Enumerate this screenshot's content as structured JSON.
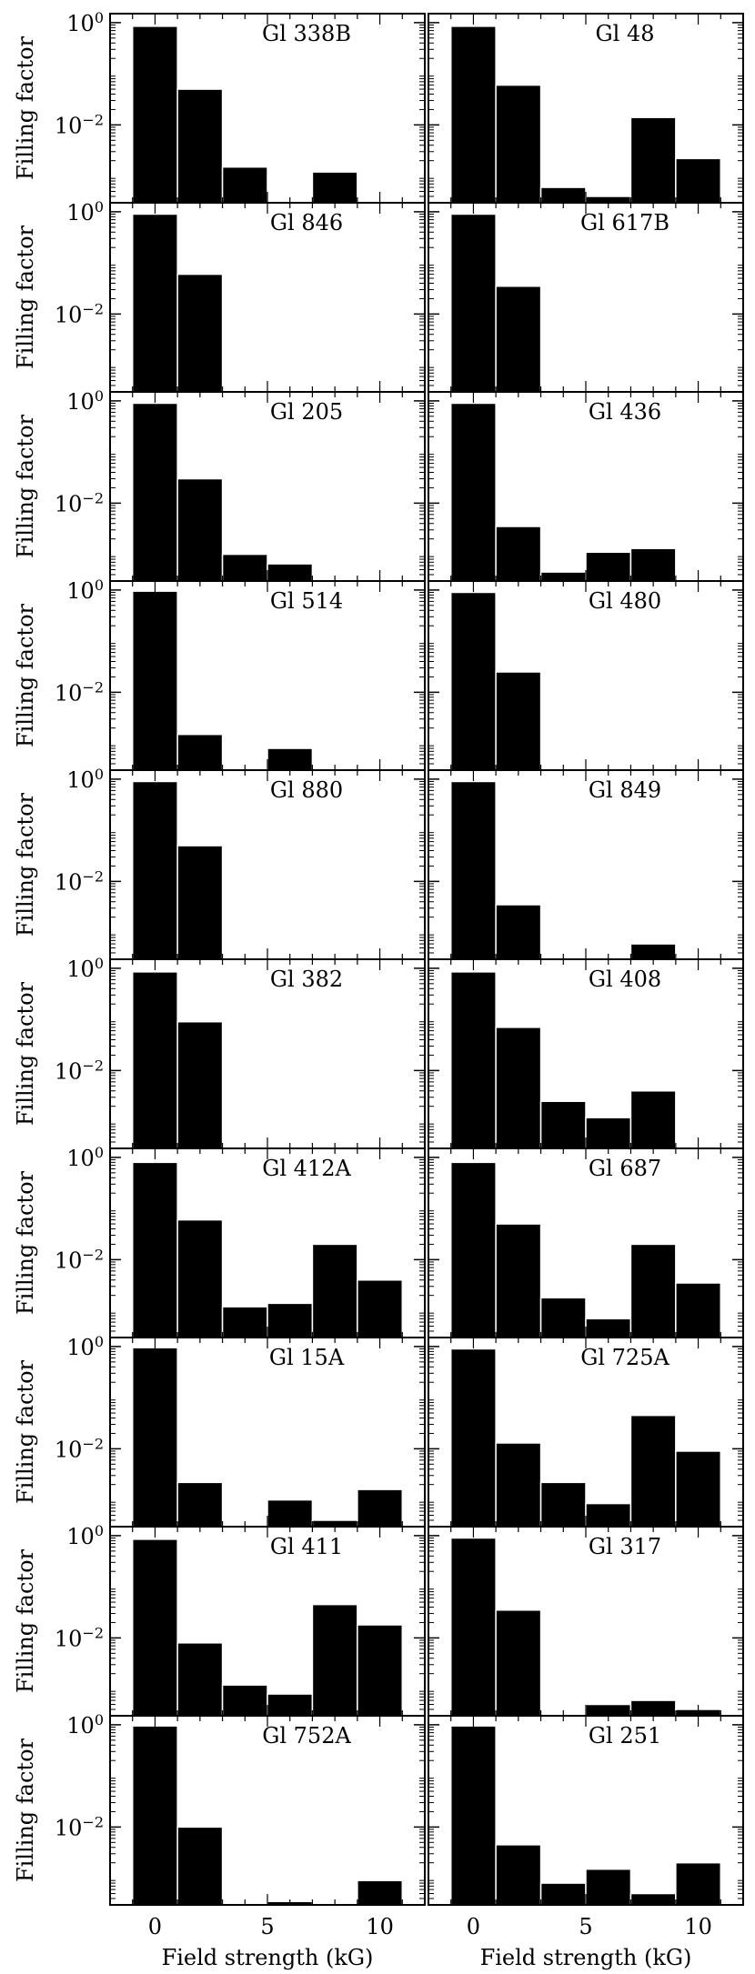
{
  "figure": {
    "ylabel": "Filling factor",
    "xlabel": "Field strength (kG)",
    "ytick_labels": [
      {
        "base": "10",
        "exp": "0",
        "value": 1
      },
      {
        "base": "10",
        "exp": "−2",
        "value": 0.01
      }
    ],
    "xtick_labels": [
      "0",
      "5",
      "10"
    ],
    "colors": {
      "bar": "#000000",
      "bar_edge": "#ffffff",
      "frame": "#000000",
      "background": "#ffffff"
    }
  },
  "chart_data": [
    {
      "type": "bar",
      "title": "Gl 338B",
      "xlabel": "",
      "ylabel": "Filling factor",
      "y_scale": "log",
      "ylim": [
        0.0003,
        1.5
      ],
      "xlim": [
        -2,
        12
      ],
      "x": [
        0,
        2,
        4,
        6,
        8,
        10
      ],
      "values": [
        0.85,
        0.05,
        0.0015,
        0,
        0.0012,
        0
      ]
    },
    {
      "type": "bar",
      "title": "Gl 48",
      "xlabel": "",
      "ylabel": "",
      "y_scale": "log",
      "ylim": [
        0.0003,
        1.5
      ],
      "xlim": [
        -2,
        12
      ],
      "x": [
        0,
        2,
        4,
        6,
        8,
        10
      ],
      "values": [
        0.85,
        0.06,
        0.0006,
        0.0004,
        0.014,
        0.0022
      ]
    },
    {
      "type": "bar",
      "title": "Gl 846",
      "xlabel": "",
      "ylabel": "Filling factor",
      "y_scale": "log",
      "ylim": [
        0.0003,
        1.5
      ],
      "xlim": [
        -2,
        12
      ],
      "x": [
        0,
        2,
        4,
        6,
        8,
        10
      ],
      "values": [
        0.9,
        0.06,
        0,
        0,
        0,
        0
      ]
    },
    {
      "type": "bar",
      "title": "Gl 617B",
      "xlabel": "",
      "ylabel": "",
      "y_scale": "log",
      "ylim": [
        0.0003,
        1.5
      ],
      "xlim": [
        -2,
        12
      ],
      "x": [
        0,
        2,
        4,
        6,
        8,
        10
      ],
      "values": [
        0.9,
        0.035,
        0,
        0,
        0,
        0
      ]
    },
    {
      "type": "bar",
      "title": "Gl 205",
      "xlabel": "",
      "ylabel": "Filling factor",
      "y_scale": "log",
      "ylim": [
        0.0003,
        1.5
      ],
      "xlim": [
        -2,
        12
      ],
      "x": [
        0,
        2,
        4,
        6,
        8,
        10
      ],
      "values": [
        0.9,
        0.03,
        0.001,
        0.00065,
        0,
        0
      ]
    },
    {
      "type": "bar",
      "title": "Gl 436",
      "xlabel": "",
      "ylabel": "",
      "y_scale": "log",
      "ylim": [
        0.0003,
        1.5
      ],
      "xlim": [
        -2,
        12
      ],
      "x": [
        0,
        2,
        4,
        6,
        8,
        10
      ],
      "values": [
        0.9,
        0.0035,
        0.00045,
        0.0011,
        0.0013,
        0
      ]
    },
    {
      "type": "bar",
      "title": "Gl 514",
      "xlabel": "",
      "ylabel": "Filling factor",
      "y_scale": "log",
      "ylim": [
        0.0003,
        1.5
      ],
      "xlim": [
        -2,
        12
      ],
      "x": [
        0,
        2,
        4,
        6,
        8,
        10
      ],
      "values": [
        0.95,
        0.0015,
        0,
        0.0008,
        0,
        0
      ]
    },
    {
      "type": "bar",
      "title": "Gl 480",
      "xlabel": "",
      "ylabel": "",
      "y_scale": "log",
      "ylim": [
        0.0003,
        1.5
      ],
      "xlim": [
        -2,
        12
      ],
      "x": [
        0,
        2,
        4,
        6,
        8,
        10
      ],
      "values": [
        0.9,
        0.025,
        0,
        0,
        0,
        0
      ]
    },
    {
      "type": "bar",
      "title": "Gl 880",
      "xlabel": "",
      "ylabel": "Filling factor",
      "y_scale": "log",
      "ylim": [
        0.0003,
        1.5
      ],
      "xlim": [
        -2,
        12
      ],
      "x": [
        0,
        2,
        4,
        6,
        8,
        10
      ],
      "values": [
        0.9,
        0.05,
        0,
        0,
        0,
        0
      ]
    },
    {
      "type": "bar",
      "title": "Gl 849",
      "xlabel": "",
      "ylabel": "",
      "y_scale": "log",
      "ylim": [
        0.0003,
        1.5
      ],
      "xlim": [
        -2,
        12
      ],
      "x": [
        0,
        2,
        4,
        6,
        8,
        10
      ],
      "values": [
        0.9,
        0.0035,
        0,
        0,
        0.0006,
        0
      ]
    },
    {
      "type": "bar",
      "title": "Gl 382",
      "xlabel": "",
      "ylabel": "Filling factor",
      "y_scale": "log",
      "ylim": [
        0.0003,
        1.5
      ],
      "xlim": [
        -2,
        12
      ],
      "x": [
        0,
        2,
        4,
        6,
        8,
        10
      ],
      "values": [
        0.85,
        0.09,
        0,
        0,
        0,
        0
      ]
    },
    {
      "type": "bar",
      "title": "Gl 408",
      "xlabel": "",
      "ylabel": "",
      "y_scale": "log",
      "ylim": [
        0.0003,
        1.5
      ],
      "xlim": [
        -2,
        12
      ],
      "x": [
        0,
        2,
        4,
        6,
        8,
        10
      ],
      "values": [
        0.85,
        0.07,
        0.0025,
        0.0012,
        0.004,
        0
      ]
    },
    {
      "type": "bar",
      "title": "Gl 412A",
      "xlabel": "",
      "ylabel": "Filling factor",
      "y_scale": "log",
      "ylim": [
        0.0003,
        1.5
      ],
      "xlim": [
        -2,
        12
      ],
      "x": [
        0,
        2,
        4,
        6,
        8,
        10
      ],
      "values": [
        0.8,
        0.06,
        0.0012,
        0.0014,
        0.02,
        0.004
      ]
    },
    {
      "type": "bar",
      "title": "Gl 687",
      "xlabel": "",
      "ylabel": "",
      "y_scale": "log",
      "ylim": [
        0.0003,
        1.5
      ],
      "xlim": [
        -2,
        12
      ],
      "x": [
        0,
        2,
        4,
        6,
        8,
        10
      ],
      "values": [
        0.8,
        0.05,
        0.0018,
        0.0007,
        0.02,
        0.0035
      ]
    },
    {
      "type": "bar",
      "title": "Gl 15A",
      "xlabel": "",
      "ylabel": "Filling factor",
      "y_scale": "log",
      "ylim": [
        0.0003,
        1.5
      ],
      "xlim": [
        -2,
        12
      ],
      "x": [
        0,
        2,
        4,
        6,
        8,
        10
      ],
      "values": [
        0.95,
        0.0022,
        0,
        0.001,
        0.0004,
        0.0016
      ]
    },
    {
      "type": "bar",
      "title": "Gl 725A",
      "xlabel": "",
      "ylabel": "",
      "y_scale": "log",
      "ylim": [
        0.0003,
        1.5
      ],
      "xlim": [
        -2,
        12
      ],
      "x": [
        0,
        2,
        4,
        6,
        8,
        10
      ],
      "values": [
        0.9,
        0.013,
        0.0022,
        0.00085,
        0.045,
        0.009
      ]
    },
    {
      "type": "bar",
      "title": "Gl 411",
      "xlabel": "",
      "ylabel": "Filling factor",
      "y_scale": "log",
      "ylim": [
        0.0003,
        1.5
      ],
      "xlim": [
        -2,
        12
      ],
      "x": [
        0,
        2,
        4,
        6,
        8,
        10
      ],
      "values": [
        0.85,
        0.008,
        0.0012,
        0.0008,
        0.045,
        0.018
      ]
    },
    {
      "type": "bar",
      "title": "Gl 317",
      "xlabel": "",
      "ylabel": "",
      "y_scale": "log",
      "ylim": [
        0.0003,
        1.5
      ],
      "xlim": [
        -2,
        12
      ],
      "x": [
        0,
        2,
        4,
        6,
        8,
        10
      ],
      "values": [
        0.9,
        0.035,
        0,
        0.0005,
        0.0006,
        0.0004
      ]
    },
    {
      "type": "bar",
      "title": "Gl 752A",
      "xlabel": "Field strength (kG)",
      "ylabel": "Filling factor",
      "y_scale": "log",
      "ylim": [
        0.0003,
        1.5
      ],
      "xlim": [
        -2,
        12
      ],
      "x": [
        0,
        2,
        4,
        6,
        8,
        10
      ],
      "values": [
        0.95,
        0.01,
        0,
        0.00035,
        0,
        0.0009
      ]
    },
    {
      "type": "bar",
      "title": "Gl 251",
      "xlabel": "Field strength (kG)",
      "ylabel": "",
      "y_scale": "log",
      "ylim": [
        0.0003,
        1.5
      ],
      "xlim": [
        -2,
        12
      ],
      "x": [
        0,
        2,
        4,
        6,
        8,
        10
      ],
      "values": [
        0.95,
        0.0045,
        0.0008,
        0.0015,
        0.0005,
        0.002
      ]
    }
  ]
}
